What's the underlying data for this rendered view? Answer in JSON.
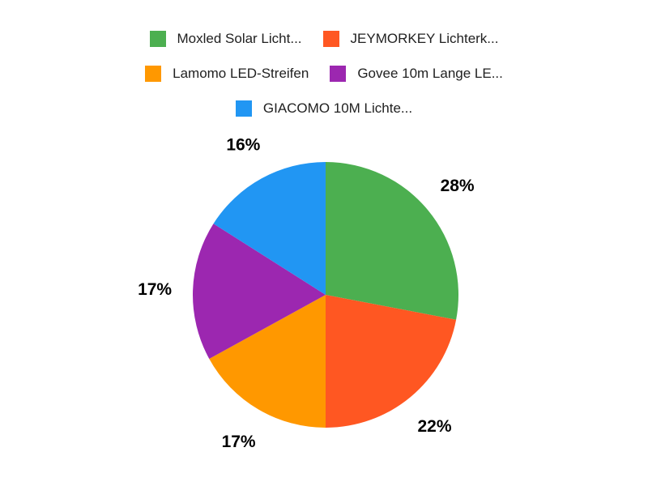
{
  "chart_data": {
    "type": "pie",
    "title": "",
    "legend_position": "top",
    "label_position": "outside",
    "label_format": "percent",
    "direction": "clockwise",
    "start_angle_deg": 0,
    "background": "#FFFFFF",
    "label_color": "#000000",
    "legend_text_color": "#212121",
    "series": [
      {
        "name": "Moxled Solar Licht...",
        "value": 28,
        "percent_label": "28%",
        "color": "#4CAF50"
      },
      {
        "name": "JEYMORKEY Lichterk...",
        "value": 22,
        "percent_label": "22%",
        "color": "#FF5722"
      },
      {
        "name": "Lamomo LED-Streifen",
        "value": 17,
        "percent_label": "17%",
        "color": "#FF9800"
      },
      {
        "name": "Govee 10m Lange LE...",
        "value": 17,
        "percent_label": "17%",
        "color": "#9C27B0"
      },
      {
        "name": "GIACOMO 10M Lichte...",
        "value": 16,
        "percent_label": "16%",
        "color": "#2196F3"
      }
    ]
  }
}
